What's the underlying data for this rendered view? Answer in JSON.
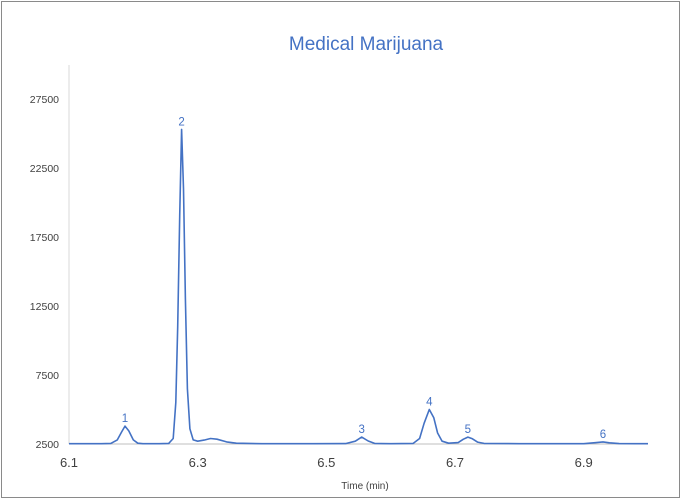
{
  "chart_data": {
    "type": "line",
    "title": "Medical Marijuana",
    "xlabel": "Time (min)",
    "ylabel": "",
    "xlim": [
      6.1,
      7.0
    ],
    "ylim": [
      2500,
      30000
    ],
    "x_ticks": [
      "6.1",
      "6.3",
      "6.5",
      "6.7",
      "6.9"
    ],
    "x_tick_values": [
      6.1,
      6.3,
      6.5,
      6.7,
      6.9
    ],
    "y_ticks": [
      "2500",
      "7500",
      "12500",
      "17500",
      "22500",
      "27500"
    ],
    "y_tick_values": [
      2500,
      7500,
      12500,
      17500,
      22500,
      27500
    ],
    "grid": false,
    "legend": "none",
    "line_color": "#4472c4",
    "baseline": 2520,
    "peaks": [
      {
        "label": "1",
        "x": 6.187,
        "y": 3800
      },
      {
        "label": "2",
        "x": 6.275,
        "y": 25300
      },
      {
        "label": "3",
        "x": 6.555,
        "y": 3000
      },
      {
        "label": "4",
        "x": 6.66,
        "y": 5000
      },
      {
        "label": "5",
        "x": 6.72,
        "y": 3000
      },
      {
        "label": "6",
        "x": 6.93,
        "y": 2650
      }
    ],
    "series": [
      {
        "points": [
          [
            6.1,
            2520
          ],
          [
            6.15,
            2520
          ],
          [
            6.165,
            2540
          ],
          [
            6.175,
            2800
          ],
          [
            6.182,
            3400
          ],
          [
            6.187,
            3800
          ],
          [
            6.193,
            3450
          ],
          [
            6.2,
            2800
          ],
          [
            6.207,
            2560
          ],
          [
            6.215,
            2520
          ],
          [
            6.24,
            2520
          ],
          [
            6.255,
            2540
          ],
          [
            6.262,
            2900
          ],
          [
            6.266,
            5500
          ],
          [
            6.269,
            11000
          ],
          [
            6.272,
            19000
          ],
          [
            6.275,
            25300
          ],
          [
            6.278,
            21000
          ],
          [
            6.281,
            13000
          ],
          [
            6.284,
            6500
          ],
          [
            6.288,
            3600
          ],
          [
            6.293,
            2800
          ],
          [
            6.3,
            2700
          ],
          [
            6.31,
            2780
          ],
          [
            6.32,
            2900
          ],
          [
            6.33,
            2850
          ],
          [
            6.345,
            2650
          ],
          [
            6.36,
            2560
          ],
          [
            6.4,
            2520
          ],
          [
            6.48,
            2520
          ],
          [
            6.53,
            2530
          ],
          [
            6.545,
            2700
          ],
          [
            6.555,
            3000
          ],
          [
            6.565,
            2720
          ],
          [
            6.575,
            2540
          ],
          [
            6.6,
            2520
          ],
          [
            6.635,
            2540
          ],
          [
            6.645,
            2900
          ],
          [
            6.652,
            4000
          ],
          [
            6.66,
            5000
          ],
          [
            6.667,
            4400
          ],
          [
            6.673,
            3300
          ],
          [
            6.68,
            2700
          ],
          [
            6.69,
            2560
          ],
          [
            6.705,
            2600
          ],
          [
            6.713,
            2850
          ],
          [
            6.72,
            3000
          ],
          [
            6.727,
            2880
          ],
          [
            6.735,
            2640
          ],
          [
            6.745,
            2540
          ],
          [
            6.8,
            2520
          ],
          [
            6.9,
            2520
          ],
          [
            6.92,
            2600
          ],
          [
            6.93,
            2650
          ],
          [
            6.94,
            2590
          ],
          [
            6.955,
            2530
          ],
          [
            7.0,
            2520
          ]
        ]
      }
    ]
  }
}
